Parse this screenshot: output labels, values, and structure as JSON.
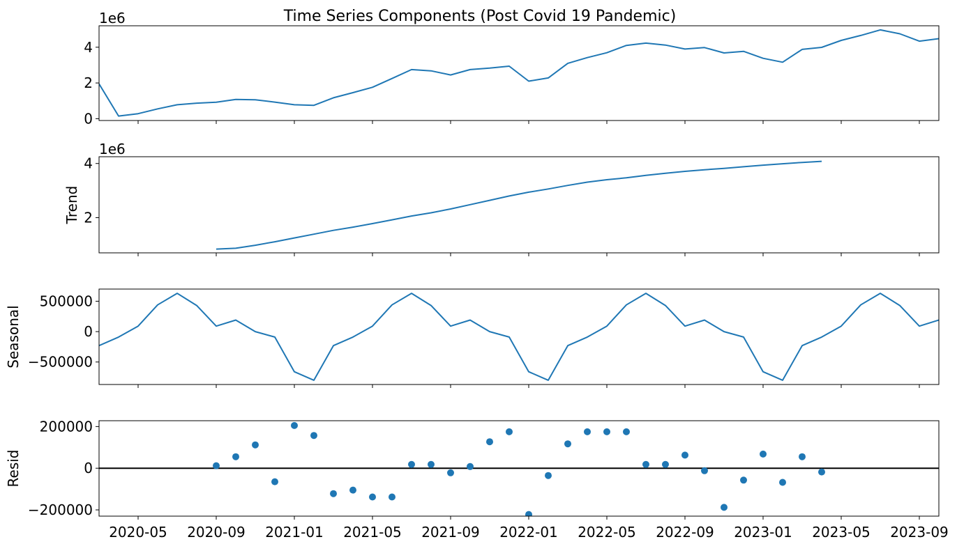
{
  "figure": {
    "title": "Time Series Components (Post Covid 19 Pandemic)"
  },
  "colors": {
    "line": "#1f77b4",
    "marker": "#1f77b4",
    "zero_line": "#000000",
    "axes": "#000000",
    "background": "#ffffff"
  },
  "chart_data": [
    {
      "type": "line",
      "name": "observed",
      "ylabel": "",
      "offset_label": "1e6",
      "x": [
        "2020-03",
        "2020-04",
        "2020-05",
        "2020-06",
        "2020-07",
        "2020-08",
        "2020-09",
        "2020-10",
        "2020-11",
        "2020-12",
        "2021-01",
        "2021-02",
        "2021-03",
        "2021-04",
        "2021-05",
        "2021-06",
        "2021-07",
        "2021-08",
        "2021-09",
        "2021-10",
        "2021-11",
        "2021-12",
        "2022-01",
        "2022-02",
        "2022-03",
        "2022-04",
        "2022-05",
        "2022-06",
        "2022-07",
        "2022-08",
        "2022-09",
        "2022-10",
        "2022-11",
        "2022-12",
        "2023-01",
        "2023-02",
        "2023-03",
        "2023-04",
        "2023-05",
        "2023-06",
        "2023-07",
        "2023-08",
        "2023-09",
        "2023-10"
      ],
      "values": [
        1950000,
        150000,
        280000,
        550000,
        780000,
        870000,
        920000,
        1080000,
        1060000,
        930000,
        780000,
        750000,
        1170000,
        1460000,
        1760000,
        2250000,
        2750000,
        2680000,
        2450000,
        2750000,
        2830000,
        2940000,
        2100000,
        2280000,
        3100000,
        3420000,
        3690000,
        4100000,
        4230000,
        4120000,
        3900000,
        3980000,
        3680000,
        3770000,
        3380000,
        3160000,
        3880000,
        3990000,
        4380000,
        4660000,
        4970000,
        4750000,
        4340000,
        4480000
      ],
      "yticks": [
        {
          "value": 0,
          "label": "0"
        },
        {
          "value": 2000000,
          "label": "2"
        },
        {
          "value": 4000000,
          "label": "4"
        }
      ],
      "ylim": [
        -100000,
        5200000
      ]
    },
    {
      "type": "line",
      "name": "trend",
      "ylabel": "Trend",
      "offset_label": "1e6",
      "x": [
        "2020-09",
        "2020-10",
        "2020-11",
        "2020-12",
        "2021-01",
        "2021-02",
        "2021-03",
        "2021-04",
        "2021-05",
        "2021-06",
        "2021-07",
        "2021-08",
        "2021-09",
        "2021-10",
        "2021-11",
        "2021-12",
        "2022-01",
        "2022-02",
        "2022-03",
        "2022-04",
        "2022-05",
        "2022-06",
        "2022-07",
        "2022-08",
        "2022-09",
        "2022-10",
        "2022-11",
        "2022-12",
        "2023-01",
        "2023-02",
        "2023-03",
        "2023-04"
      ],
      "values": [
        840000,
        870000,
        980000,
        1110000,
        1250000,
        1390000,
        1530000,
        1650000,
        1780000,
        1920000,
        2060000,
        2180000,
        2320000,
        2480000,
        2640000,
        2800000,
        2940000,
        3060000,
        3190000,
        3310000,
        3400000,
        3470000,
        3560000,
        3640000,
        3710000,
        3770000,
        3820000,
        3880000,
        3940000,
        3990000,
        4040000,
        4080000
      ],
      "yticks": [
        {
          "value": 2000000,
          "label": "2"
        },
        {
          "value": 4000000,
          "label": "4"
        }
      ],
      "ylim": [
        700000,
        4250000
      ]
    },
    {
      "type": "line",
      "name": "seasonal",
      "ylabel": "Seasonal",
      "x": [
        "2020-03",
        "2020-04",
        "2020-05",
        "2020-06",
        "2020-07",
        "2020-08",
        "2020-09",
        "2020-10",
        "2020-11",
        "2020-12",
        "2021-01",
        "2021-02",
        "2021-03",
        "2021-04",
        "2021-05",
        "2021-06",
        "2021-07",
        "2021-08",
        "2021-09",
        "2021-10",
        "2021-11",
        "2021-12",
        "2022-01",
        "2022-02",
        "2022-03",
        "2022-04",
        "2022-05",
        "2022-06",
        "2022-07",
        "2022-08",
        "2022-09",
        "2022-10",
        "2022-11",
        "2022-12",
        "2023-01",
        "2023-02",
        "2023-03",
        "2023-04",
        "2023-05",
        "2023-06",
        "2023-07",
        "2023-08",
        "2023-09",
        "2023-10"
      ],
      "values": [
        -230000,
        -90000,
        90000,
        440000,
        630000,
        430000,
        90000,
        190000,
        0,
        -90000,
        -660000,
        -800000,
        -230000,
        -90000,
        90000,
        440000,
        630000,
        430000,
        90000,
        190000,
        0,
        -90000,
        -660000,
        -800000,
        -230000,
        -90000,
        90000,
        440000,
        630000,
        430000,
        90000,
        190000,
        0,
        -90000,
        -660000,
        -800000,
        -230000,
        -90000,
        90000,
        440000,
        630000,
        430000,
        90000,
        190000
      ],
      "yticks": [
        {
          "value": -500000,
          "label": "−500000"
        },
        {
          "value": 0,
          "label": "0"
        },
        {
          "value": 500000,
          "label": "500000"
        }
      ],
      "ylim": [
        -870000,
        700000
      ]
    },
    {
      "type": "scatter",
      "name": "resid",
      "ylabel": "Resid",
      "x": [
        "2020-09",
        "2020-10",
        "2020-11",
        "2020-12",
        "2021-01",
        "2021-02",
        "2021-03",
        "2021-04",
        "2021-05",
        "2021-06",
        "2021-07",
        "2021-08",
        "2021-09",
        "2021-10",
        "2021-11",
        "2021-12",
        "2022-01",
        "2022-02",
        "2022-03",
        "2022-04",
        "2022-05",
        "2022-06",
        "2022-07",
        "2022-08",
        "2022-09",
        "2022-10",
        "2022-11",
        "2022-12",
        "2023-01",
        "2023-02",
        "2023-03",
        "2023-04"
      ],
      "values": [
        12000,
        55000,
        112000,
        -65000,
        205000,
        157000,
        -122000,
        -105000,
        -138000,
        -138000,
        18000,
        18000,
        -22000,
        8000,
        127000,
        175000,
        -222000,
        -35000,
        117000,
        175000,
        175000,
        175000,
        18000,
        18000,
        63000,
        -12000,
        -188000,
        -57000,
        68000,
        -68000,
        55000,
        -18000
      ],
      "zero_line": true,
      "yticks": [
        {
          "value": -200000,
          "label": "−200000"
        },
        {
          "value": 0,
          "label": "0"
        },
        {
          "value": 200000,
          "label": "200000"
        }
      ],
      "ylim": [
        -230000,
        228000
      ]
    }
  ],
  "xaxis": {
    "xlim": [
      "2020-03",
      "2023-10"
    ],
    "ticks": [
      {
        "value": "2020-05",
        "label": "2020-05"
      },
      {
        "value": "2020-09",
        "label": "2020-09"
      },
      {
        "value": "2021-01",
        "label": "2021-01"
      },
      {
        "value": "2021-05",
        "label": "2021-05"
      },
      {
        "value": "2021-09",
        "label": "2021-09"
      },
      {
        "value": "2022-01",
        "label": "2022-01"
      },
      {
        "value": "2022-05",
        "label": "2022-05"
      },
      {
        "value": "2022-09",
        "label": "2022-09"
      },
      {
        "value": "2023-01",
        "label": "2023-01"
      },
      {
        "value": "2023-05",
        "label": "2023-05"
      },
      {
        "value": "2023-09",
        "label": "2023-09"
      }
    ]
  }
}
